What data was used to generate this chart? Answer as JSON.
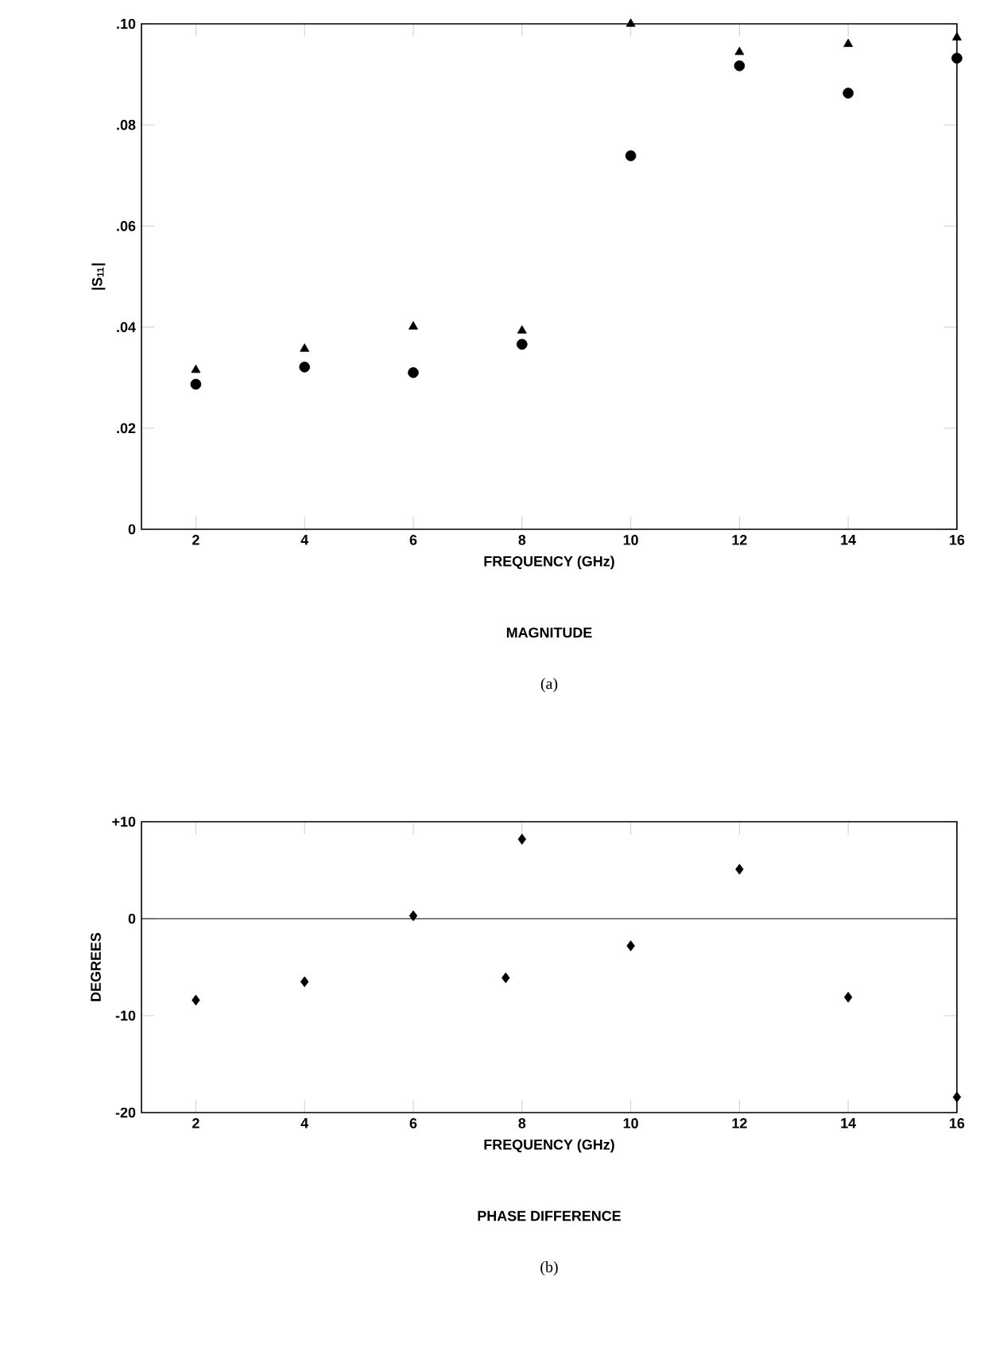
{
  "chart_data": [
    {
      "type": "scatter",
      "title": "MAGNITUDE",
      "xlabel": "FREQUENCY (GHz)",
      "ylabel": "|S$_{11}$|",
      "annotations": [
        "(a)"
      ],
      "xlim": [
        1,
        16
      ],
      "xticks": [
        2,
        4,
        6,
        8,
        10,
        12,
        14,
        16
      ],
      "ylim": [
        0,
        0.1
      ],
      "yticks": [
        0,
        {
          "value": 0.02,
          "label": ".02"
        },
        {
          "value": 0.04,
          "label": ".04"
        },
        {
          "value": 0.06,
          "label": ".06"
        },
        {
          "value": 0.08,
          "label": ".08"
        },
        {
          "value": 0.1,
          "label": ".10"
        }
      ],
      "grid": false,
      "series": [
        {
          "color": "#000000",
          "marker": "triangle",
          "x": [
            2,
            4,
            6,
            8,
            10,
            12,
            14,
            16
          ],
          "values": [
            0.0315,
            0.0357,
            0.0401,
            0.0393,
            0.1,
            0.0944,
            0.096,
            0.0973
          ]
        },
        {
          "color": "#000000",
          "marker": "circle",
          "x": [
            2,
            4,
            6,
            8,
            10,
            12,
            14,
            16
          ],
          "values": [
            0.0287,
            0.0321,
            0.031,
            0.0366,
            0.0739,
            0.0917,
            0.0863,
            0.0932
          ]
        }
      ]
    },
    {
      "type": "scatter",
      "title": "PHASE DIFFERENCE",
      "xlabel": "FREQUENCY (GHz)",
      "ylabel": "DEGREES",
      "annotations": [
        "(b)"
      ],
      "xlim": [
        1,
        16
      ],
      "xticks": [
        2,
        4,
        6,
        8,
        10,
        12,
        14,
        16
      ],
      "ylim": [
        -20,
        10
      ],
      "yticks": [
        -20,
        -10,
        0,
        {
          "value": 10,
          "label": "+10"
        }
      ],
      "grid": false,
      "ref_lines": [
        {
          "axis": "y",
          "value": 0,
          "color": "#000000"
        }
      ],
      "series": [
        {
          "color": "#000000",
          "marker": "diamond",
          "x": [
            2,
            4,
            6,
            7.7,
            8,
            10,
            12,
            14,
            16
          ],
          "values": [
            -8.4,
            -6.5,
            0.3,
            -6.1,
            8.2,
            -2.8,
            5.1,
            -8.1,
            -18.4
          ]
        }
      ]
    }
  ]
}
